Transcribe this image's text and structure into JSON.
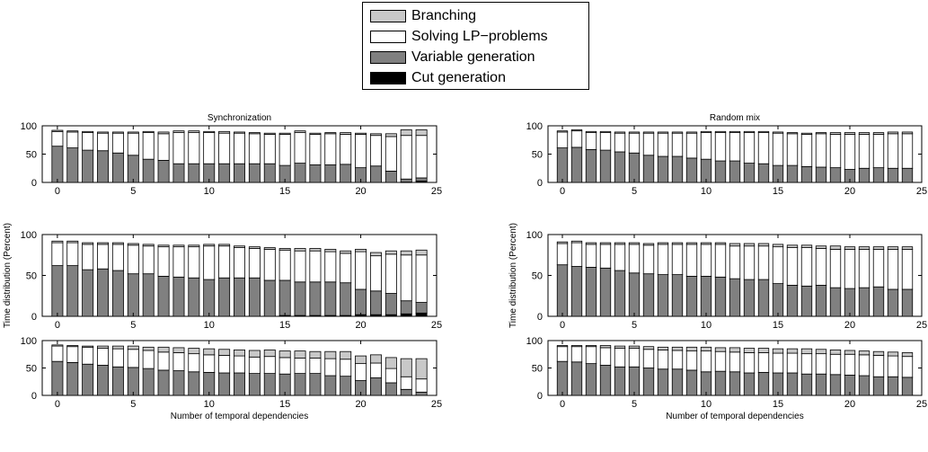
{
  "legend": {
    "entries": [
      {
        "label": "Branching",
        "color": "#c8c8c8"
      },
      {
        "label": "Solving LP−problems",
        "color": "#ffffff"
      },
      {
        "label": "Variable generation",
        "color": "#808080"
      },
      {
        "label": "Cut generation",
        "color": "#000000"
      }
    ]
  },
  "chart_data": [
    {
      "type": "bar",
      "stacked": true,
      "title": "Synchronization",
      "xlabel": "",
      "ylabel": "",
      "x": [
        0,
        1,
        2,
        3,
        4,
        5,
        6,
        7,
        8,
        9,
        10,
        11,
        12,
        13,
        14,
        15,
        16,
        17,
        18,
        19,
        20,
        21,
        22,
        23,
        24
      ],
      "xticks": [
        0,
        5,
        10,
        15,
        20,
        25
      ],
      "yticks": [
        0,
        50,
        100
      ],
      "ylim": [
        0,
        100
      ],
      "xlim": [
        -1,
        25
      ],
      "series": [
        {
          "name": "Cut generation",
          "values": [
            0,
            0,
            0,
            0,
            0,
            0,
            0,
            0,
            0,
            0,
            0,
            0,
            0,
            0,
            0,
            0,
            0,
            0,
            0,
            0,
            0,
            0,
            0,
            0.5,
            2.5
          ]
        },
        {
          "name": "Variable generation",
          "values": [
            64,
            61,
            57,
            56,
            52,
            48,
            41,
            39,
            33,
            33,
            33,
            33,
            33,
            33,
            33,
            30,
            34,
            31,
            31,
            32,
            26,
            29,
            20,
            5.5,
            5.5
          ]
        },
        {
          "name": "Solving LP−problems",
          "values": [
            26,
            28,
            31,
            31,
            35,
            39,
            47,
            47,
            55,
            55,
            55,
            54,
            54,
            53,
            52,
            55,
            54,
            54,
            55,
            53,
            59,
            54,
            61,
            77,
            75
          ]
        },
        {
          "name": "Branching",
          "values": [
            2,
            2,
            2,
            2,
            2,
            2,
            2,
            3,
            3,
            3,
            2,
            3,
            2,
            2,
            2,
            2,
            3,
            2,
            2,
            3,
            2,
            3,
            5,
            10,
            10
          ]
        }
      ]
    },
    {
      "type": "bar",
      "stacked": true,
      "title": "",
      "xlabel": "",
      "ylabel": "Time distribution (Percent)",
      "x": [
        0,
        1,
        2,
        3,
        4,
        5,
        6,
        7,
        8,
        9,
        10,
        11,
        12,
        13,
        14,
        15,
        16,
        17,
        18,
        19,
        20,
        21,
        22,
        23,
        24
      ],
      "xticks": [
        0,
        5,
        10,
        15,
        20,
        25
      ],
      "yticks": [
        0,
        50,
        100
      ],
      "ylim": [
        0,
        100
      ],
      "xlim": [
        -1,
        25
      ],
      "series": [
        {
          "name": "Cut generation",
          "values": [
            0,
            0,
            0,
            0,
            0,
            0,
            0,
            0,
            0,
            0,
            0,
            0,
            0,
            0,
            0,
            1,
            1,
            1,
            1,
            1,
            2,
            2,
            2,
            3,
            4
          ]
        },
        {
          "name": "Variable generation",
          "values": [
            62,
            62,
            57,
            58,
            56,
            52,
            52,
            49,
            48,
            47,
            45,
            47,
            47,
            47,
            44,
            43,
            41,
            41,
            41,
            40,
            31,
            29,
            26,
            16,
            13
          ]
        },
        {
          "name": "Solving LP−problems",
          "values": [
            28,
            28,
            31,
            30,
            32,
            35,
            34,
            36,
            37,
            38,
            41,
            39,
            37,
            36,
            38,
            37,
            38,
            38,
            37,
            36,
            46,
            43,
            48,
            56,
            58
          ]
        },
        {
          "name": "Branching",
          "values": [
            2,
            2,
            2,
            2,
            2,
            2,
            2,
            2,
            2,
            2,
            2,
            2,
            2,
            2,
            2,
            2,
            3,
            3,
            3,
            3,
            3,
            4,
            4,
            5,
            6
          ]
        }
      ]
    },
    {
      "type": "bar",
      "stacked": true,
      "title": "",
      "xlabel": "Number of temporal dependencies",
      "ylabel": "",
      "x": [
        0,
        1,
        2,
        3,
        4,
        5,
        6,
        7,
        8,
        9,
        10,
        11,
        12,
        13,
        14,
        15,
        16,
        17,
        18,
        19,
        20,
        21,
        22,
        23,
        24
      ],
      "xticks": [
        0,
        5,
        10,
        15,
        20,
        25
      ],
      "yticks": [
        0,
        50,
        100
      ],
      "ylim": [
        0,
        100
      ],
      "xlim": [
        -1,
        25
      ],
      "series": [
        {
          "name": "Cut generation",
          "values": [
            0,
            0,
            0,
            0,
            0,
            0,
            0,
            0,
            0,
            0,
            0,
            0,
            0,
            0,
            0,
            0,
            0,
            0,
            0,
            0,
            0,
            0,
            0,
            0,
            0
          ]
        },
        {
          "name": "Variable generation",
          "values": [
            62,
            60,
            57,
            55,
            52,
            51,
            49,
            46,
            45,
            43,
            42,
            41,
            41,
            40,
            40,
            39,
            40,
            40,
            36,
            35,
            27,
            32,
            23,
            11,
            6
          ]
        },
        {
          "name": "Solving LP−problems",
          "values": [
            28,
            29,
            31,
            31,
            33,
            33,
            33,
            33,
            33,
            33,
            32,
            32,
            31,
            30,
            31,
            30,
            28,
            28,
            31,
            31,
            31,
            27,
            26,
            23,
            24
          ]
        },
        {
          "name": "Branching",
          "values": [
            2,
            2,
            2,
            4,
            5,
            6,
            6,
            9,
            9,
            10,
            11,
            11,
            11,
            12,
            12,
            12,
            13,
            12,
            13,
            14,
            14,
            15,
            20,
            33,
            37
          ]
        }
      ]
    },
    {
      "type": "bar",
      "stacked": true,
      "title": "Random mix",
      "xlabel": "",
      "ylabel": "",
      "x": [
        0,
        1,
        2,
        3,
        4,
        5,
        6,
        7,
        8,
        9,
        10,
        11,
        12,
        13,
        14,
        15,
        16,
        17,
        18,
        19,
        20,
        21,
        22,
        23,
        24
      ],
      "xticks": [
        0,
        5,
        10,
        15,
        20,
        25
      ],
      "yticks": [
        0,
        50,
        100
      ],
      "ylim": [
        0,
        100
      ],
      "xlim": [
        -1,
        25
      ],
      "series": [
        {
          "name": "Cut generation",
          "values": [
            0,
            0,
            0,
            0,
            0,
            0,
            0,
            0,
            0,
            0,
            0,
            0,
            0,
            0,
            0,
            0,
            0,
            0,
            0,
            0,
            0,
            0,
            0,
            0,
            0
          ]
        },
        {
          "name": "Variable generation",
          "values": [
            61,
            62,
            58,
            57,
            54,
            52,
            48,
            46,
            46,
            43,
            41,
            38,
            38,
            34,
            33,
            30,
            30,
            28,
            27,
            26,
            23,
            25,
            26,
            25,
            25
          ]
        },
        {
          "name": "Solving LP−problems",
          "values": [
            28,
            29,
            30,
            31,
            33,
            35,
            39,
            41,
            41,
            44,
            47,
            50,
            50,
            54,
            55,
            57,
            56,
            57,
            59,
            59,
            62,
            60,
            59,
            61,
            61
          ]
        },
        {
          "name": "Branching",
          "values": [
            2,
            2,
            2,
            2,
            2,
            2,
            2,
            2,
            2,
            2,
            2,
            2,
            2,
            2,
            2,
            2,
            2,
            2,
            2,
            3,
            3,
            3,
            3,
            3,
            3
          ]
        }
      ]
    },
    {
      "type": "bar",
      "stacked": true,
      "title": "",
      "xlabel": "",
      "ylabel": "Time distribution (Percent)",
      "x": [
        0,
        1,
        2,
        3,
        4,
        5,
        6,
        7,
        8,
        9,
        10,
        11,
        12,
        13,
        14,
        15,
        16,
        17,
        18,
        19,
        20,
        21,
        22,
        23,
        24
      ],
      "xticks": [
        0,
        5,
        10,
        15,
        20,
        25
      ],
      "yticks": [
        0,
        50,
        100
      ],
      "ylim": [
        0,
        100
      ],
      "xlim": [
        -1,
        25
      ],
      "series": [
        {
          "name": "Cut generation",
          "values": [
            0,
            0,
            0,
            0,
            0,
            0,
            0,
            0,
            0,
            0,
            0,
            0,
            0,
            0,
            0,
            0,
            0,
            0,
            0,
            0,
            0,
            0,
            0,
            0,
            0
          ]
        },
        {
          "name": "Variable generation",
          "values": [
            63,
            61,
            60,
            59,
            56,
            53,
            52,
            51,
            51,
            49,
            49,
            48,
            46,
            45,
            45,
            40,
            38,
            37,
            38,
            35,
            34,
            35,
            36,
            33,
            33
          ]
        },
        {
          "name": "Solving LP−problems",
          "values": [
            26,
            29,
            28,
            29,
            32,
            35,
            35,
            37,
            37,
            39,
            39,
            40,
            40,
            41,
            41,
            45,
            46,
            47,
            45,
            47,
            48,
            47,
            46,
            49,
            49
          ]
        },
        {
          "name": "Branching",
          "values": [
            2,
            2,
            2,
            2,
            2,
            2,
            2,
            2,
            2,
            2,
            2,
            2,
            3,
            3,
            3,
            3,
            3,
            3,
            3,
            4,
            3,
            3,
            3,
            3,
            3
          ]
        }
      ]
    },
    {
      "type": "bar",
      "stacked": true,
      "title": "",
      "xlabel": "Number of temporal dependencies",
      "ylabel": "",
      "x": [
        0,
        1,
        2,
        3,
        4,
        5,
        6,
        7,
        8,
        9,
        10,
        11,
        12,
        13,
        14,
        15,
        16,
        17,
        18,
        19,
        20,
        21,
        22,
        23,
        24
      ],
      "xticks": [
        0,
        5,
        10,
        15,
        20,
        25
      ],
      "yticks": [
        0,
        50,
        100
      ],
      "ylim": [
        0,
        100
      ],
      "xlim": [
        -1,
        25
      ],
      "series": [
        {
          "name": "Cut generation",
          "values": [
            0,
            0,
            0,
            0,
            0,
            0,
            0,
            0,
            0,
            0,
            0,
            0,
            0,
            0,
            0,
            0,
            0,
            0,
            0,
            0,
            0,
            0,
            0,
            0,
            0
          ]
        },
        {
          "name": "Variable generation",
          "values": [
            62,
            61,
            58,
            55,
            52,
            52,
            50,
            48,
            48,
            46,
            43,
            44,
            43,
            41,
            42,
            41,
            41,
            39,
            39,
            38,
            37,
            36,
            34,
            34,
            33
          ]
        },
        {
          "name": "Solving LP−problems",
          "values": [
            27,
            28,
            31,
            32,
            34,
            34,
            34,
            35,
            34,
            35,
            38,
            36,
            36,
            37,
            36,
            36,
            36,
            37,
            37,
            37,
            38,
            38,
            39,
            38,
            38
          ]
        },
        {
          "name": "Branching",
          "values": [
            2,
            2,
            2,
            4,
            4,
            4,
            5,
            5,
            6,
            7,
            7,
            7,
            8,
            8,
            8,
            8,
            8,
            9,
            8,
            8,
            7,
            7,
            7,
            7,
            7
          ]
        }
      ]
    }
  ]
}
